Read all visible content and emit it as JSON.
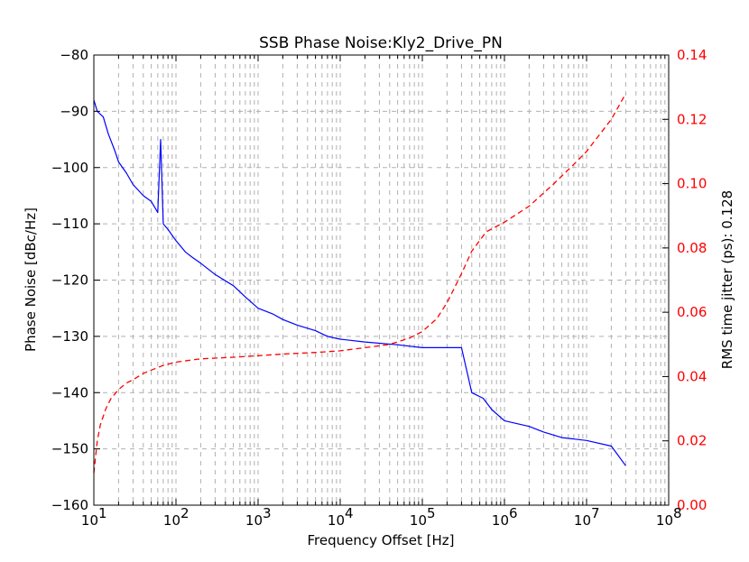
{
  "chart_data": {
    "type": "line",
    "title": "SSB Phase Noise:Kly2_Drive_PN",
    "xlabel": "Frequency Offset [Hz]",
    "ylabel": "Phase Noise [dBc/Hz]",
    "y2label": "RMS time jitter (ps): 0.128",
    "xscale": "log",
    "xlim": [
      10,
      100000000
    ],
    "ylim": [
      -160,
      -80
    ],
    "y2lim": [
      0.0,
      0.14
    ],
    "grid": true,
    "x_ticks": [
      {
        "value": 10,
        "base": "10",
        "exp": "1"
      },
      {
        "value": 100,
        "base": "10",
        "exp": "2"
      },
      {
        "value": 1000,
        "base": "10",
        "exp": "3"
      },
      {
        "value": 10000,
        "base": "10",
        "exp": "4"
      },
      {
        "value": 100000,
        "base": "10",
        "exp": "5"
      },
      {
        "value": 1000000,
        "base": "10",
        "exp": "6"
      },
      {
        "value": 10000000,
        "base": "10",
        "exp": "7"
      },
      {
        "value": 100000000,
        "base": "10",
        "exp": "8"
      }
    ],
    "y_ticks": [
      "−80",
      "−90",
      "−100",
      "−110",
      "−120",
      "−130",
      "−140",
      "−150",
      "−160"
    ],
    "y_tick_values": [
      -80,
      -90,
      -100,
      -110,
      -120,
      -130,
      -140,
      -150,
      -160
    ],
    "y2_ticks": [
      "0.14",
      "0.12",
      "0.10",
      "0.08",
      "0.06",
      "0.04",
      "0.02",
      "0.00"
    ],
    "y2_tick_values": [
      0.14,
      0.12,
      0.1,
      0.08,
      0.06,
      0.04,
      0.02,
      0.0
    ],
    "series": [
      {
        "name": "Phase Noise",
        "axis": "left",
        "color": "#0000ff",
        "style": "solid",
        "x": [
          10,
          11,
          13,
          15,
          18,
          20,
          25,
          30,
          40,
          50,
          60,
          65,
          70,
          80,
          100,
          130,
          160,
          200,
          300,
          500,
          700,
          1000,
          1500,
          2000,
          3000,
          5000,
          7000,
          10000,
          20000,
          50000,
          100000,
          200000,
          300000,
          400000,
          550000,
          700000,
          1000000,
          2000000,
          3000000,
          5000000,
          10000000,
          20000000,
          30000000
        ],
        "y": [
          -88,
          -90,
          -91,
          -94,
          -97,
          -99,
          -101,
          -103,
          -105,
          -106,
          -108,
          -95,
          -110,
          -111,
          -113,
          -115,
          -116,
          -117,
          -119,
          -121,
          -123,
          -125,
          -126,
          -127,
          -128,
          -129,
          -130,
          -130.5,
          -131,
          -131.5,
          -132,
          -132,
          -132,
          -140,
          -141,
          -143,
          -145,
          -146,
          -147,
          -148,
          -148.5,
          -149.5,
          -153
        ]
      },
      {
        "name": "RMS time jitter",
        "axis": "right",
        "color": "#ff0000",
        "style": "dashed",
        "x": [
          10,
          11,
          12,
          14,
          16,
          20,
          25,
          30,
          40,
          50,
          70,
          100,
          200,
          500,
          1000,
          2000,
          5000,
          10000,
          20000,
          40000,
          70000,
          100000,
          150000,
          200000,
          300000,
          400000,
          600000,
          1000000,
          2000000,
          4000000,
          7000000,
          10000000,
          20000000,
          30000000
        ],
        "y": [
          0.01,
          0.02,
          0.025,
          0.03,
          0.033,
          0.036,
          0.038,
          0.039,
          0.041,
          0.042,
          0.0435,
          0.0445,
          0.0455,
          0.046,
          0.0465,
          0.047,
          0.0475,
          0.048,
          0.049,
          0.05,
          0.052,
          0.054,
          0.058,
          0.063,
          0.072,
          0.079,
          0.085,
          0.088,
          0.093,
          0.1,
          0.106,
          0.11,
          0.12,
          0.128
        ]
      }
    ]
  }
}
